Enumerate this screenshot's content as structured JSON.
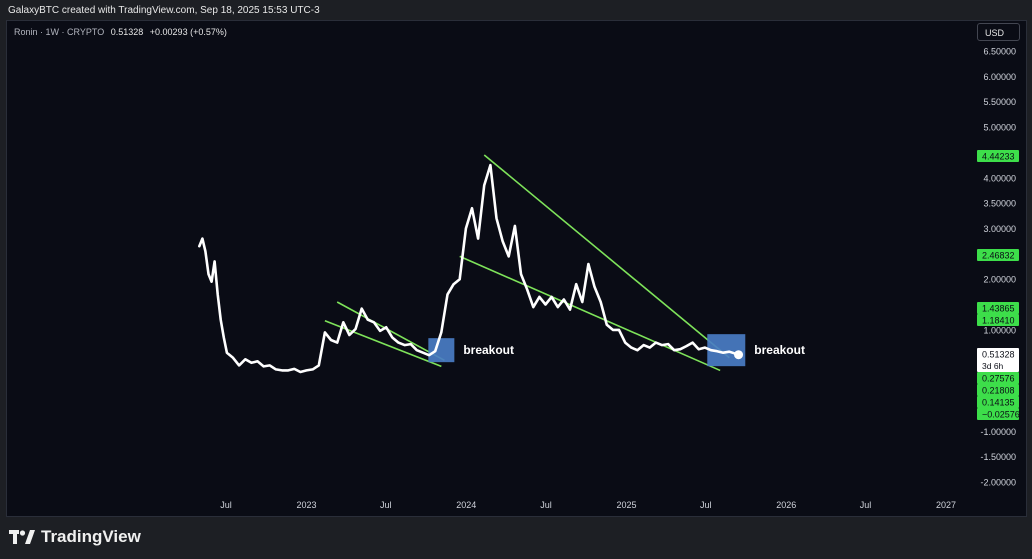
{
  "caption": "GalaxyBTC created with TradingView.com, Sep 18, 2025 15:53 UTC-3",
  "symbol": {
    "name": "Ronin · 1W · CRYPTO",
    "price": "0.51328",
    "change": "+0.00293 (+0.57%)"
  },
  "currency": "USD",
  "brand": "TradingView",
  "colors": {
    "background": "#0a0c15",
    "line": "#ffffff",
    "trend": "#7ee35a",
    "box": "#4a7dc4",
    "tag": "#3dde4a"
  },
  "chart_data": {
    "type": "line",
    "series": [
      {
        "x": [
          "2022-05-01",
          "2022-05-08",
          "2022-05-15",
          "2022-05-22",
          "2022-05-29",
          "2022-06-05",
          "2022-06-12",
          "2022-06-19",
          "2022-06-26",
          "2022-07-03",
          "2022-07-17",
          "2022-07-31",
          "2022-08-14",
          "2022-08-28",
          "2022-09-11",
          "2022-09-25",
          "2022-10-09",
          "2022-10-23",
          "2022-11-06",
          "2022-11-20",
          "2022-12-04",
          "2022-12-18",
          "2023-01-01",
          "2023-01-15",
          "2023-01-29",
          "2023-02-12",
          "2023-02-26",
          "2023-03-12",
          "2023-03-26",
          "2023-04-09",
          "2023-04-23",
          "2023-05-07",
          "2023-05-21",
          "2023-06-04",
          "2023-06-18",
          "2023-07-02",
          "2023-07-16",
          "2023-07-30",
          "2023-08-13",
          "2023-08-27",
          "2023-09-10",
          "2023-09-24",
          "2023-10-08",
          "2023-10-22",
          "2023-11-05",
          "2023-11-19",
          "2023-12-03",
          "2023-12-17",
          "2023-12-31",
          "2024-01-14",
          "2024-01-28",
          "2024-02-11",
          "2024-02-25",
          "2024-03-10",
          "2024-03-24",
          "2024-04-07",
          "2024-04-21",
          "2024-05-05",
          "2024-05-19",
          "2024-06-02",
          "2024-06-16",
          "2024-06-30",
          "2024-07-14",
          "2024-07-28",
          "2024-08-11",
          "2024-08-25",
          "2024-09-08",
          "2024-09-22",
          "2024-10-06",
          "2024-10-20",
          "2024-11-03",
          "2024-11-17",
          "2024-12-01",
          "2024-12-15",
          "2024-12-29",
          "2025-01-12",
          "2025-01-26",
          "2025-02-09",
          "2025-02-23",
          "2025-03-09",
          "2025-03-23",
          "2025-04-06",
          "2025-04-20",
          "2025-05-04",
          "2025-05-18",
          "2025-06-01",
          "2025-06-15",
          "2025-06-29",
          "2025-07-13",
          "2025-07-27",
          "2025-08-10",
          "2025-08-24",
          "2025-09-07",
          "2025-09-14"
        ],
        "values": [
          2.65,
          2.8,
          2.55,
          2.1,
          1.95,
          2.35,
          1.7,
          1.2,
          0.85,
          0.55,
          0.45,
          0.3,
          0.42,
          0.35,
          0.38,
          0.28,
          0.3,
          0.22,
          0.2,
          0.2,
          0.23,
          0.17,
          0.2,
          0.22,
          0.3,
          0.95,
          0.8,
          0.75,
          1.15,
          0.9,
          1.02,
          1.42,
          1.2,
          1.15,
          0.98,
          1.05,
          0.85,
          0.75,
          0.7,
          0.72,
          0.6,
          0.55,
          0.5,
          0.58,
          0.95,
          1.7,
          1.9,
          2.0,
          3.0,
          3.4,
          2.8,
          3.85,
          4.25,
          3.2,
          2.75,
          2.45,
          3.05,
          2.1,
          1.8,
          1.45,
          1.65,
          1.5,
          1.65,
          1.45,
          1.6,
          1.4,
          1.9,
          1.55,
          2.3,
          1.85,
          1.55,
          1.1,
          1.0,
          1.0,
          0.75,
          0.65,
          0.6,
          0.7,
          0.65,
          0.75,
          0.7,
          0.72,
          0.6,
          0.62,
          0.68,
          0.75,
          0.62,
          0.65,
          0.6,
          0.58,
          0.55,
          0.57,
          0.53,
          0.51
        ]
      }
    ],
    "y_ticks": [
      "6.50000",
      "6.00000",
      "5.50000",
      "5.00000",
      "4.00000",
      "3.50000",
      "3.00000",
      "2.00000",
      "1.00000",
      "-1.00000",
      "-1.50000",
      "-2.00000"
    ],
    "x_ticks": [
      "Jul",
      "2023",
      "Jul",
      "2024",
      "Jul",
      "2025",
      "Jul",
      "2026",
      "Jul",
      "2027"
    ],
    "price_tags": [
      {
        "label": "4.44233",
        "value": 4.44233
      },
      {
        "label": "2.46832",
        "value": 2.46832
      },
      {
        "label": "1.43865",
        "value": 1.43865
      },
      {
        "label": "1.18410",
        "value": 1.1841
      },
      {
        "label": "0.51328",
        "value": 0.51328,
        "current": true,
        "countdown": "3d 6h"
      },
      {
        "label": "0.27576",
        "value": 0.27576
      },
      {
        "label": "0.21808",
        "value": 0.21808
      },
      {
        "label": "0.14135",
        "value": 0.14135
      },
      {
        "label": "−0.02576",
        "value": -0.02576
      }
    ],
    "trendlines": [
      {
        "from": [
          "2023-03-12",
          1.55
        ],
        "to": [
          "2023-11-12",
          0.4
        ]
      },
      {
        "from": [
          "2023-02-12",
          1.18
        ],
        "to": [
          "2023-11-05",
          0.28
        ]
      },
      {
        "from": [
          "2024-02-11",
          4.45
        ],
        "to": [
          "2025-08-24",
          0.45
        ]
      },
      {
        "from": [
          "2023-12-17",
          2.45
        ],
        "to": [
          "2025-08-03",
          0.2
        ]
      }
    ],
    "annotations": [
      {
        "text": "breakout",
        "date": "2023-11-05",
        "value": 0.6
      },
      {
        "text": "breakout",
        "date": "2025-08-17",
        "value": 0.6
      }
    ],
    "ylim": [
      -2.0,
      6.6
    ],
    "xlim": [
      "2022-01-01",
      "2027-03-01"
    ],
    "grid": false
  }
}
